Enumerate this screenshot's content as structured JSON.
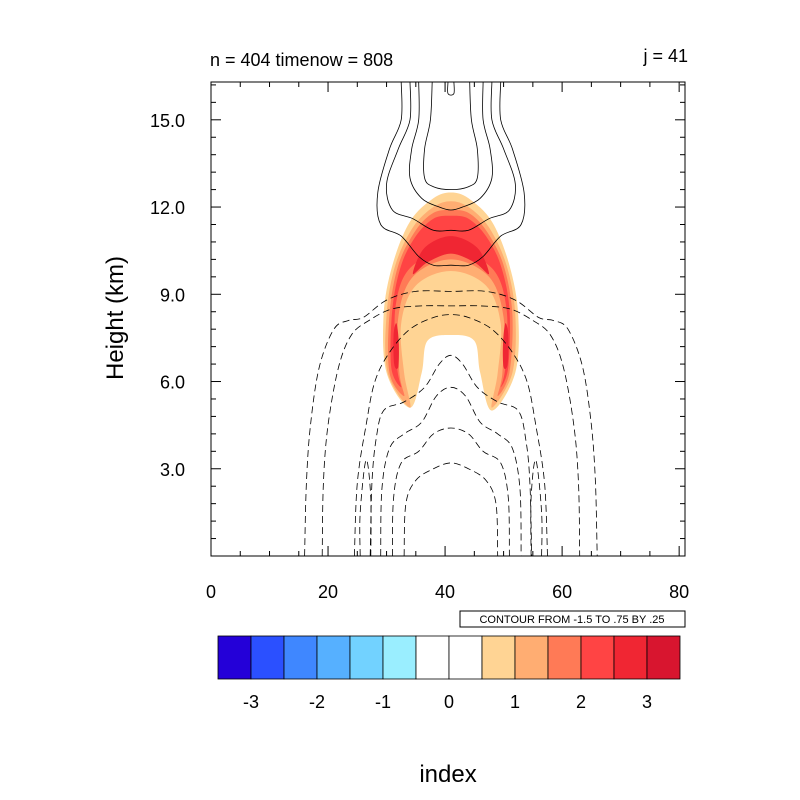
{
  "chart_data": {
    "type": "heatmap",
    "title_left": "n = 404 timenow = 808",
    "title_right": "j = 41",
    "xlabel": "index",
    "ylabel": "Height (km)",
    "xlim": [
      0,
      81
    ],
    "ylim": [
      0,
      16.3
    ],
    "x_ticks": [
      {
        "value": 0,
        "label": "0"
      },
      {
        "value": 20,
        "label": "20"
      },
      {
        "value": 40,
        "label": "40"
      },
      {
        "value": 60,
        "label": "60"
      },
      {
        "value": 80,
        "label": "80"
      }
    ],
    "y_ticks": [
      {
        "value": 3,
        "label": "3.0"
      },
      {
        "value": 6,
        "label": "6.0"
      },
      {
        "value": 9,
        "label": "9.0"
      },
      {
        "value": 12,
        "label": "12.0"
      },
      {
        "value": 15,
        "label": "15.0"
      }
    ],
    "contour_info": "CONTOUR FROM -1.5 TO .75 BY .25",
    "colorbar": {
      "levels": [
        -3.5,
        -3,
        -2.5,
        -2,
        -1.5,
        -1,
        -0.5,
        0,
        0.5,
        1,
        1.5,
        2,
        2.5,
        3,
        3.5
      ],
      "colors": [
        "#2400d8",
        "#2b50ff",
        "#3f87ff",
        "#56b0ff",
        "#72d2ff",
        "#9aeeff",
        "#ffffff",
        "#ffffff",
        "#ffd494",
        "#ffad72",
        "#ff7a56",
        "#ff4444",
        "#f02633",
        "#d8152f"
      ],
      "tick_labels": [
        {
          "value": -3,
          "label": "-3"
        },
        {
          "value": -2,
          "label": "-2"
        },
        {
          "value": -1,
          "label": "-1"
        },
        {
          "value": 0,
          "label": "0"
        },
        {
          "value": 1,
          "label": "1"
        },
        {
          "value": 2,
          "label": "2"
        },
        {
          "value": 3,
          "label": "3"
        }
      ]
    },
    "filled_regions": [
      {
        "level": 0.5,
        "color": "#ffd494",
        "points": [
          [
            34,
            5.1
          ],
          [
            30,
            6.3
          ],
          [
            29.5,
            8.3
          ],
          [
            31,
            10.0
          ],
          [
            34,
            11.5
          ],
          [
            38,
            12.3
          ],
          [
            41,
            12.5
          ],
          [
            44,
            12.3
          ],
          [
            48,
            11.5
          ],
          [
            51,
            10.0
          ],
          [
            52.5,
            8.3
          ],
          [
            52,
            6.3
          ],
          [
            48,
            5.0
          ],
          [
            46,
            6.3
          ],
          [
            45,
            7.4
          ],
          [
            41,
            7.6
          ],
          [
            37,
            7.4
          ],
          [
            36,
            6.3
          ]
        ]
      },
      {
        "level": 1.0,
        "color": "#ffad72",
        "points": [
          [
            34,
            5.1
          ],
          [
            30.2,
            6.3
          ],
          [
            30,
            8.3
          ],
          [
            31.5,
            10.0
          ],
          [
            34.5,
            11.3
          ],
          [
            38,
            12.0
          ],
          [
            41,
            12.2
          ],
          [
            44,
            12.0
          ],
          [
            47.5,
            11.3
          ],
          [
            50.5,
            10.0
          ],
          [
            52,
            8.3
          ],
          [
            51.5,
            6.3
          ],
          [
            48,
            5.1
          ],
          [
            49,
            6.3
          ],
          [
            49.5,
            8.0
          ],
          [
            47,
            9.3
          ],
          [
            41,
            9.8
          ],
          [
            35,
            9.3
          ],
          [
            32.5,
            8.0
          ],
          [
            33,
            6.3
          ]
        ]
      },
      {
        "level": 1.5,
        "color": "#ff7a56",
        "points": [
          [
            33,
            5.5
          ],
          [
            30.5,
            6.3
          ],
          [
            30.5,
            8.3
          ],
          [
            32,
            10.0
          ],
          [
            35,
            11.2
          ],
          [
            38,
            11.8
          ],
          [
            41,
            11.9
          ],
          [
            44,
            11.8
          ],
          [
            47,
            11.2
          ],
          [
            50,
            10.0
          ],
          [
            51.5,
            8.3
          ],
          [
            51,
            6.3
          ],
          [
            49,
            5.5
          ],
          [
            49.8,
            6.3
          ],
          [
            50,
            8.2
          ],
          [
            47.5,
            9.6
          ],
          [
            41,
            10.2
          ],
          [
            34.5,
            9.6
          ],
          [
            32,
            8.2
          ],
          [
            32.2,
            6.3
          ]
        ]
      },
      {
        "level": 2.0,
        "color": "#ff4444",
        "points": [
          [
            32.5,
            5.8
          ],
          [
            30.8,
            6.5
          ],
          [
            31,
            8.5
          ],
          [
            32.5,
            10.0
          ],
          [
            35,
            11.0
          ],
          [
            38,
            11.6
          ],
          [
            41,
            11.7
          ],
          [
            44,
            11.6
          ],
          [
            47,
            11.0
          ],
          [
            49.5,
            10.0
          ],
          [
            51,
            8.5
          ],
          [
            50.8,
            6.5
          ],
          [
            49.5,
            5.8
          ],
          [
            50.3,
            6.5
          ],
          [
            50.5,
            8.5
          ],
          [
            48,
            9.9
          ],
          [
            41,
            10.5
          ],
          [
            34,
            9.9
          ],
          [
            31.5,
            8.5
          ],
          [
            31.8,
            6.5
          ]
        ]
      },
      {
        "level": 2.5,
        "color": "#f02633",
        "points": [
          [
            34.5,
            9.7
          ],
          [
            36.5,
            10.6
          ],
          [
            41,
            11.0
          ],
          [
            45.5,
            10.6
          ],
          [
            47.5,
            9.7
          ],
          [
            45,
            10.1
          ],
          [
            41,
            10.4
          ],
          [
            37,
            10.1
          ]
        ]
      },
      {
        "level": 2.5,
        "color": "#f02633",
        "points": [
          [
            31.3,
            6.6
          ],
          [
            31.2,
            7.6
          ],
          [
            31.7,
            8.0
          ],
          [
            32.1,
            7.3
          ],
          [
            32.0,
            6.5
          ]
        ]
      },
      {
        "level": 2.5,
        "color": "#f02633",
        "points": [
          [
            50.7,
            6.6
          ],
          [
            50.8,
            7.6
          ],
          [
            50.3,
            8.0
          ],
          [
            49.9,
            7.3
          ],
          [
            50.0,
            6.5
          ]
        ]
      }
    ],
    "contour_lines": [
      {
        "style": "solid",
        "points": [
          [
            32.5,
            16.3
          ],
          [
            32.5,
            15.0
          ],
          [
            30.5,
            14.0
          ],
          [
            28.5,
            12.5
          ],
          [
            29,
            11.4
          ],
          [
            32.5,
            11.0
          ],
          [
            35.5,
            10.3
          ],
          [
            38,
            10.0
          ],
          [
            41,
            10.0
          ],
          [
            44,
            10.0
          ],
          [
            46.5,
            10.3
          ],
          [
            49.5,
            11.0
          ],
          [
            53,
            11.4
          ],
          [
            53.5,
            12.5
          ],
          [
            51.5,
            14.0
          ],
          [
            49.5,
            15.0
          ],
          [
            49.5,
            16.3
          ]
        ]
      },
      {
        "style": "solid",
        "points": [
          [
            34,
            16.3
          ],
          [
            34,
            15.0
          ],
          [
            32,
            14.0
          ],
          [
            30,
            12.8
          ],
          [
            31,
            11.9
          ],
          [
            34.5,
            11.6
          ],
          [
            38,
            11.2
          ],
          [
            41,
            11.2
          ],
          [
            44,
            11.2
          ],
          [
            47.5,
            11.6
          ],
          [
            51,
            11.9
          ],
          [
            52,
            12.8
          ],
          [
            50,
            14.0
          ],
          [
            48,
            15.0
          ],
          [
            48,
            16.3
          ]
        ]
      },
      {
        "style": "solid",
        "points": [
          [
            35.5,
            16.3
          ],
          [
            35.5,
            15.0
          ],
          [
            34.3,
            14.0
          ],
          [
            34,
            13.0
          ],
          [
            36,
            12.3
          ],
          [
            39,
            12.0
          ],
          [
            41,
            11.9
          ],
          [
            43,
            12.0
          ],
          [
            46,
            12.3
          ],
          [
            48,
            13.0
          ],
          [
            47.7,
            14.0
          ],
          [
            46.5,
            15.0
          ],
          [
            46.5,
            16.3
          ]
        ]
      },
      {
        "style": "solid",
        "points": [
          [
            37.8,
            16.3
          ],
          [
            37.5,
            15.0
          ],
          [
            36.5,
            14.0
          ],
          [
            36.5,
            13.0
          ],
          [
            38,
            12.7
          ],
          [
            41,
            12.6
          ],
          [
            44,
            12.7
          ],
          [
            45.5,
            13.0
          ],
          [
            45.5,
            14.0
          ],
          [
            44.5,
            15.0
          ],
          [
            44.2,
            16.3
          ]
        ]
      },
      {
        "style": "solid",
        "points": [
          [
            40.5,
            16.3
          ],
          [
            40.5,
            15.9
          ],
          [
            41.5,
            15.9
          ],
          [
            41.5,
            16.3
          ]
        ]
      },
      {
        "style": "dashed",
        "points": [
          [
            16,
            0
          ],
          [
            16.3,
            2.5
          ],
          [
            17,
            4.5
          ],
          [
            18.5,
            6.5
          ],
          [
            21,
            7.8
          ],
          [
            23.5,
            8.1
          ],
          [
            26,
            8.2
          ],
          [
            30,
            8.8
          ],
          [
            35,
            9.1
          ],
          [
            41,
            9.1
          ],
          [
            47,
            9.1
          ],
          [
            52,
            8.8
          ],
          [
            56,
            8.2
          ],
          [
            58.5,
            8.1
          ],
          [
            61,
            7.8
          ],
          [
            63.5,
            6.5
          ],
          [
            65,
            4.5
          ],
          [
            65.7,
            2.5
          ],
          [
            66,
            0
          ]
        ]
      },
      {
        "style": "dashed",
        "points": [
          [
            19,
            0
          ],
          [
            19.2,
            2.5
          ],
          [
            20,
            4.5
          ],
          [
            21.8,
            6.5
          ],
          [
            24,
            7.6
          ],
          [
            27,
            8.1
          ],
          [
            31,
            8.5
          ],
          [
            36,
            8.6
          ],
          [
            41,
            8.6
          ],
          [
            46,
            8.6
          ],
          [
            51,
            8.5
          ],
          [
            55,
            8.1
          ],
          [
            58,
            7.6
          ],
          [
            60.2,
            6.5
          ],
          [
            62,
            4.5
          ],
          [
            62.8,
            2.5
          ],
          [
            63,
            0
          ]
        ]
      },
      {
        "style": "dashed",
        "points": [
          [
            24.5,
            0
          ],
          [
            25,
            2.5
          ],
          [
            26.5,
            4.5
          ],
          [
            28,
            6.0
          ],
          [
            30.5,
            7.0
          ],
          [
            34,
            7.8
          ],
          [
            38,
            8.2
          ],
          [
            41,
            8.3
          ],
          [
            44,
            8.2
          ],
          [
            48,
            7.8
          ],
          [
            51.5,
            7.0
          ],
          [
            54,
            6.0
          ],
          [
            55.5,
            4.5
          ],
          [
            57,
            2.5
          ],
          [
            57.5,
            0
          ]
        ]
      },
      {
        "style": "dashed",
        "points": [
          [
            27.2,
            0
          ],
          [
            27.5,
            2.5
          ],
          [
            28.2,
            4.0
          ],
          [
            29.5,
            5.0
          ],
          [
            33,
            5.3
          ],
          [
            36.5,
            5.8
          ],
          [
            39,
            6.6
          ],
          [
            41,
            6.9
          ],
          [
            43,
            6.6
          ],
          [
            45.5,
            5.8
          ],
          [
            49,
            5.3
          ],
          [
            52.5,
            5.0
          ],
          [
            53.8,
            4.0
          ],
          [
            54.5,
            2.5
          ],
          [
            54.8,
            0
          ]
        ]
      },
      {
        "style": "dashed",
        "points": [
          [
            29,
            0
          ],
          [
            29.2,
            2.3
          ],
          [
            30.5,
            3.7
          ],
          [
            33,
            4.2
          ],
          [
            36,
            4.6
          ],
          [
            38.5,
            5.5
          ],
          [
            41,
            5.8
          ],
          [
            43.5,
            5.5
          ],
          [
            46,
            4.6
          ],
          [
            49,
            4.2
          ],
          [
            51.5,
            3.7
          ],
          [
            52.8,
            2.3
          ],
          [
            53,
            0
          ]
        ]
      },
      {
        "style": "dashed",
        "points": [
          [
            31,
            0
          ],
          [
            31.2,
            2.0
          ],
          [
            32.5,
            3.2
          ],
          [
            35.5,
            3.6
          ],
          [
            38,
            4.2
          ],
          [
            41,
            4.4
          ],
          [
            44,
            4.2
          ],
          [
            46.5,
            3.6
          ],
          [
            49.5,
            3.2
          ],
          [
            50.8,
            2.0
          ],
          [
            51,
            0
          ]
        ]
      },
      {
        "style": "dashed",
        "points": [
          [
            33,
            0
          ],
          [
            33.3,
            1.8
          ],
          [
            35,
            2.6
          ],
          [
            38,
            3.0
          ],
          [
            41,
            3.2
          ],
          [
            44,
            3.0
          ],
          [
            47,
            2.6
          ],
          [
            48.7,
            1.8
          ],
          [
            49,
            0
          ]
        ]
      },
      {
        "style": "dashed",
        "points": [
          [
            25.5,
            0
          ],
          [
            25.5,
            1.5
          ],
          [
            26.5,
            3.3
          ],
          [
            27.3,
            2.0
          ],
          [
            27.3,
            0
          ]
        ]
      },
      {
        "style": "dashed",
        "points": [
          [
            56.5,
            0
          ],
          [
            56.5,
            1.5
          ],
          [
            55.5,
            3.3
          ],
          [
            54.7,
            2.0
          ],
          [
            54.7,
            0
          ]
        ]
      }
    ]
  }
}
